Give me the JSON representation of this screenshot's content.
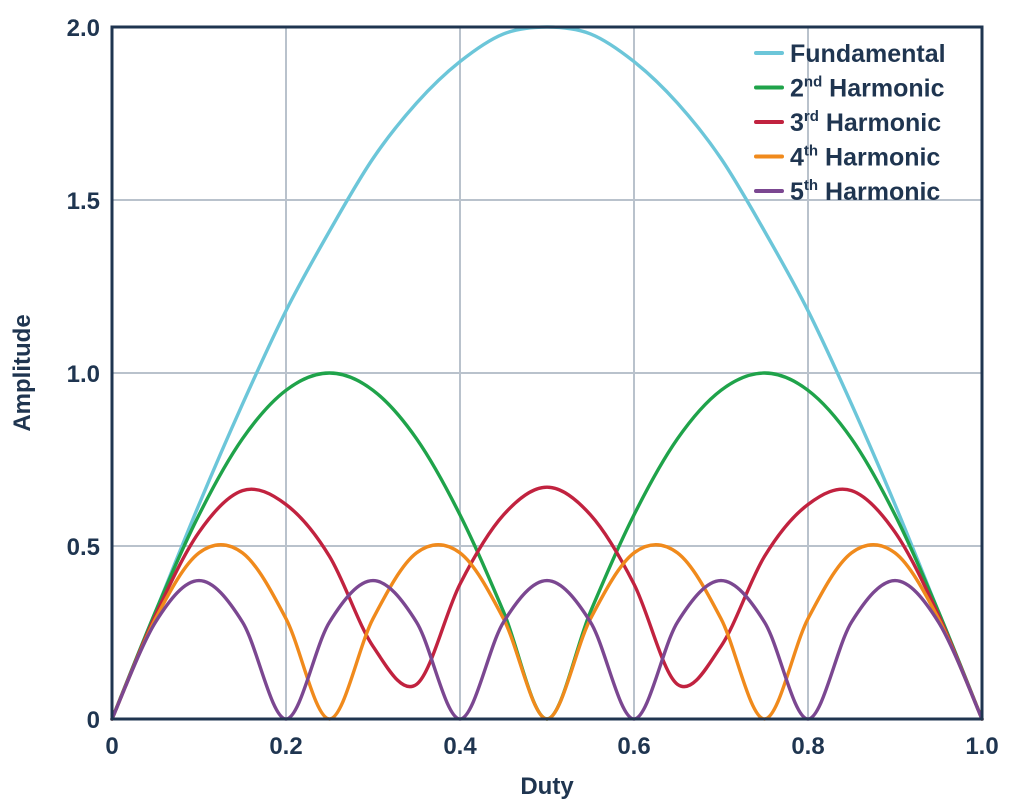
{
  "chart_data": {
    "type": "line",
    "title": "",
    "xlabel": "Duty",
    "ylabel": "Amplitude",
    "xlim": [
      0,
      1.0
    ],
    "ylim": [
      0,
      2.0
    ],
    "grid": true,
    "legend_position": "top-right",
    "x_ticks": [
      {
        "value": 0,
        "label": "0"
      },
      {
        "value": 0.2,
        "label": "0.2"
      },
      {
        "value": 0.4,
        "label": "0.4"
      },
      {
        "value": 0.6,
        "label": "0.6"
      },
      {
        "value": 0.8,
        "label": "0.8"
      },
      {
        "value": 1.0,
        "label": "1.0"
      }
    ],
    "y_ticks": [
      {
        "value": 0,
        "label": "0"
      },
      {
        "value": 0.5,
        "label": "0.5"
      },
      {
        "value": 1.0,
        "label": "1.0"
      },
      {
        "value": 1.5,
        "label": "1.5"
      },
      {
        "value": 2.0,
        "label": "2.0"
      }
    ],
    "x": [
      0,
      0.05,
      0.1,
      0.15,
      0.2,
      0.25,
      0.3,
      0.35,
      0.4,
      0.45,
      0.5,
      0.55,
      0.6,
      0.65,
      0.7,
      0.75,
      0.8,
      0.85,
      0.9,
      0.95,
      1.0
    ],
    "series": [
      {
        "name": "Fundamental",
        "superscript": "",
        "color": "#6cc6d9",
        "values": [
          0,
          0.31,
          0.62,
          0.91,
          1.18,
          1.41,
          1.62,
          1.78,
          1.9,
          1.98,
          2.0,
          1.98,
          1.9,
          1.78,
          1.62,
          1.41,
          1.18,
          0.91,
          0.62,
          0.31,
          0
        ]
      },
      {
        "name": " Harmonic",
        "superscript": "nd",
        "prefix": "2",
        "color": "#1fa34a",
        "values": [
          0,
          0.31,
          0.59,
          0.81,
          0.95,
          1.0,
          0.95,
          0.81,
          0.59,
          0.31,
          0,
          0.31,
          0.59,
          0.81,
          0.95,
          1.0,
          0.95,
          0.81,
          0.59,
          0.31,
          0
        ]
      },
      {
        "name": " Harmonic",
        "superscript": "rd",
        "prefix": "3",
        "color": "#c1223f",
        "values": [
          0,
          0.3,
          0.54,
          0.66,
          0.62,
          0.47,
          0.21,
          0.1,
          0.39,
          0.59,
          0.67,
          0.59,
          0.39,
          0.1,
          0.21,
          0.47,
          0.62,
          0.66,
          0.54,
          0.3,
          0
        ]
      },
      {
        "name": " Harmonic",
        "superscript": "th",
        "prefix": "4",
        "color": "#f08a1c",
        "values": [
          0,
          0.29,
          0.48,
          0.48,
          0.29,
          0,
          0.29,
          0.48,
          0.48,
          0.29,
          0,
          0.29,
          0.48,
          0.48,
          0.29,
          0,
          0.29,
          0.48,
          0.48,
          0.29,
          0
        ]
      },
      {
        "name": " Harmonic",
        "superscript": "th",
        "prefix": "5",
        "color": "#7b4791",
        "values": [
          0,
          0.28,
          0.4,
          0.28,
          0,
          0.28,
          0.4,
          0.28,
          0,
          0.28,
          0.4,
          0.28,
          0,
          0.28,
          0.4,
          0.28,
          0,
          0.28,
          0.4,
          0.28,
          0
        ]
      }
    ]
  }
}
